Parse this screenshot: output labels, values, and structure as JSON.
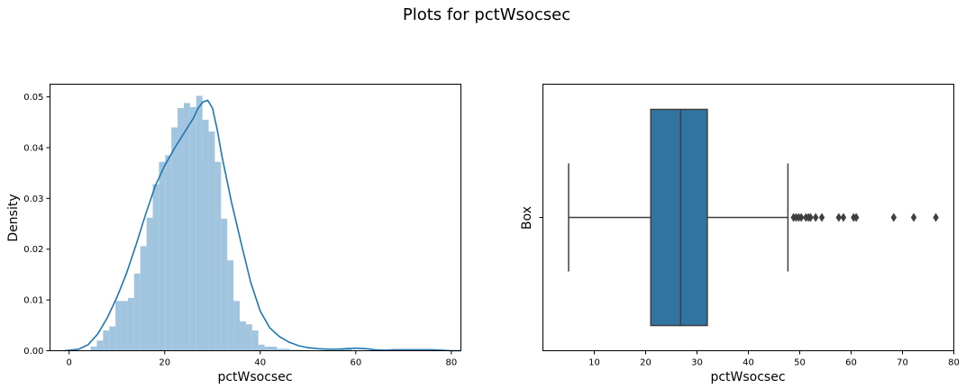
{
  "figure": {
    "title": "Plots for pctWsocsec"
  },
  "colors": {
    "hist_fill": "#a1c4df",
    "kde_line": "#1f77b4",
    "box_fill": "#3274a1",
    "box_line": "#3f3f3f",
    "axis": "#000000"
  },
  "chart_data": [
    {
      "type": "histogram",
      "title": "",
      "xlabel": "pctWsocsec",
      "ylabel": "Density",
      "xlim": [
        -4,
        82
      ],
      "ylim": [
        0,
        0.0525
      ],
      "xticks": [
        0,
        20,
        40,
        60,
        80
      ],
      "yticks": [
        0.0,
        0.01,
        0.02,
        0.03,
        0.04,
        0.05
      ],
      "ytick_labels": [
        "0.00",
        "0.01",
        "0.02",
        "0.03",
        "0.04",
        "0.05"
      ],
      "bin_edges": [
        4.5,
        5.8,
        7.1,
        8.4,
        9.7,
        11.0,
        12.3,
        13.6,
        14.9,
        16.2,
        17.5,
        18.8,
        20.1,
        21.4,
        22.7,
        24.0,
        25.3,
        26.6,
        27.9,
        29.2,
        30.5,
        31.8,
        33.1,
        34.4,
        35.7,
        37.0,
        38.3,
        39.6,
        40.9,
        42.2,
        43.5,
        44.8,
        46.1,
        47.4,
        48.7,
        50.0,
        51.3,
        52.6,
        53.9,
        55.2,
        56.5,
        57.8,
        59.1,
        60.4,
        61.7,
        63.0,
        64.3,
        65.6,
        66.9,
        68.2,
        69.5,
        70.8,
        72.1,
        73.4,
        74.7,
        76.0,
        77.3
      ],
      "densities": [
        0.0008,
        0.002,
        0.004,
        0.0048,
        0.0098,
        0.0098,
        0.0104,
        0.0152,
        0.0206,
        0.0262,
        0.0328,
        0.0372,
        0.0385,
        0.044,
        0.0478,
        0.0488,
        0.048,
        0.0502,
        0.0455,
        0.0432,
        0.0372,
        0.026,
        0.0178,
        0.0098,
        0.0058,
        0.0052,
        0.004,
        0.0012,
        0.0008,
        0.0008,
        0.0004,
        0.0004,
        0.0002,
        0.0002,
        0.0,
        0.0,
        0.0,
        0.0,
        0.0,
        0.0,
        0.0004,
        0.0004,
        0.0,
        0.0,
        0.0,
        0.0,
        0.0,
        0.0,
        0.0002,
        0.0,
        0.0,
        0.0002,
        0.0,
        0.0,
        0.0002,
        0.0
      ],
      "kde": {
        "x": [
          -1,
          2,
          4,
          6,
          8,
          10,
          12,
          14,
          16,
          18,
          20,
          22,
          24,
          26,
          27,
          28,
          29,
          30,
          31,
          32,
          34,
          36,
          38,
          40,
          42,
          44,
          46,
          48,
          50,
          52,
          54,
          56,
          58,
          60,
          62,
          64,
          66,
          68,
          70,
          72,
          74,
          76,
          78,
          80,
          82
        ],
        "y": [
          0.0,
          0.0003,
          0.0012,
          0.0033,
          0.0065,
          0.0105,
          0.0152,
          0.0208,
          0.0268,
          0.0324,
          0.0365,
          0.0398,
          0.0428,
          0.0458,
          0.0478,
          0.049,
          0.0493,
          0.0478,
          0.0435,
          0.0382,
          0.0292,
          0.0212,
          0.0135,
          0.0078,
          0.0045,
          0.0028,
          0.0017,
          0.001,
          0.0006,
          0.0004,
          0.0003,
          0.0003,
          0.0004,
          0.0005,
          0.0004,
          0.0002,
          0.0001,
          0.0002,
          0.0002,
          0.0002,
          0.0002,
          0.0002,
          0.0001,
          0.0,
          0.0
        ]
      }
    },
    {
      "type": "box",
      "title": "",
      "xlabel": "pctWsocsec",
      "ylabel": "Box",
      "category": "",
      "xlim": [
        0,
        80
      ],
      "xticks": [
        10,
        20,
        30,
        40,
        50,
        60,
        70,
        80
      ],
      "whisker_low": 5.0,
      "q1": 21.0,
      "median": 26.8,
      "q3": 32.0,
      "whisker_high": 47.7,
      "outliers": [
        48.8,
        49.3,
        49.8,
        50.3,
        51.2,
        51.7,
        52.1,
        53.1,
        54.3,
        57.6,
        58.5,
        60.5,
        61.0,
        68.3,
        72.2,
        76.5
      ]
    }
  ]
}
